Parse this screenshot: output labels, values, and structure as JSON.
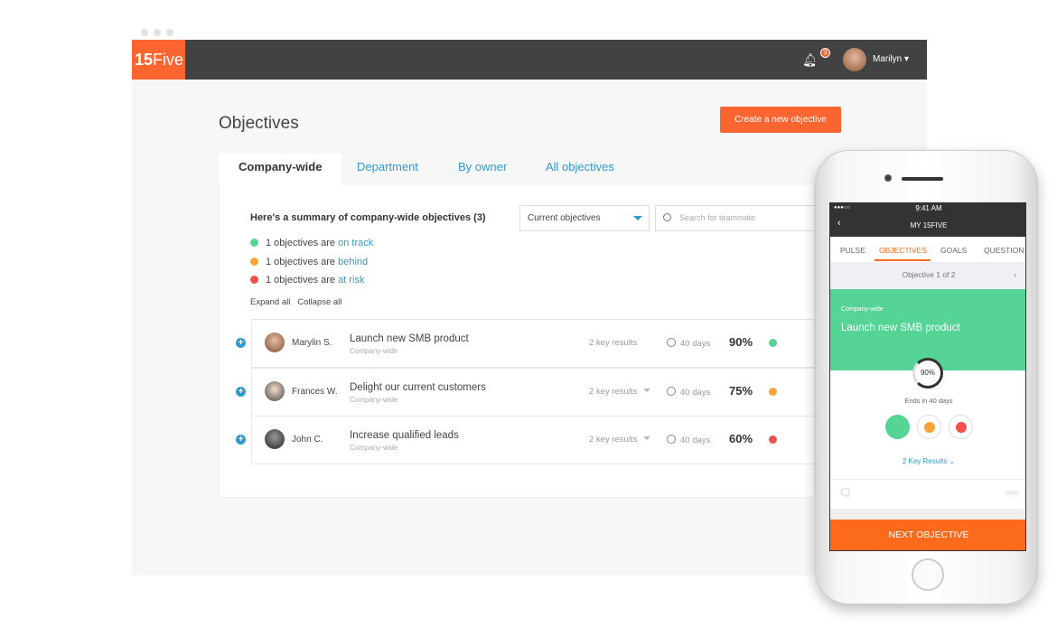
{
  "window": {
    "logo": {
      "num": "15",
      "word": "Five"
    },
    "notifications": "3",
    "user": "Marilyn"
  },
  "page": {
    "title": "Objectives",
    "create_button": "Create a new objective"
  },
  "tabs": [
    {
      "label": "Company-wide"
    },
    {
      "label": "Department"
    },
    {
      "label": "By owner"
    },
    {
      "label": "All objectives"
    }
  ],
  "summary": {
    "title": "Here's a summary of company-wide objectives (3)",
    "lines": [
      {
        "prefix": "1 objectives are ",
        "link": "on track",
        "color": "#55d496"
      },
      {
        "prefix": "1 objectives are ",
        "link": "behind",
        "color": "#fca43a"
      },
      {
        "prefix": "1 objectives are ",
        "link": "at risk",
        "color": "#f24f4f"
      }
    ]
  },
  "filter": {
    "selected": "Current objectives",
    "search_placeholder": "Search for teammate"
  },
  "controls": {
    "expand": "Expand all",
    "collapse": "Collapse all"
  },
  "objectives": [
    {
      "owner": "Marylin S.",
      "title": "Launch new SMB product",
      "scope": "Company-wide",
      "key_results": "2 key results",
      "days": "40 days",
      "progress": "90%",
      "status_color": "#55d496"
    },
    {
      "owner": "Frances W.",
      "title": "Delight our current customers",
      "scope": "Company-wide",
      "key_results": "2 key results",
      "days": "40 days",
      "progress": "75%",
      "status_color": "#fca43a"
    },
    {
      "owner": "John C.",
      "title": "Increase qualified leads",
      "scope": "Company-wide",
      "key_results": "2 key results",
      "days": "40 days",
      "progress": "60%",
      "status_color": "#f24f4f"
    }
  ],
  "phone": {
    "time": "9:41 AM",
    "title": "MY 15FIVE",
    "tabs": [
      "PULSE",
      "OBJECTIVES",
      "GOALS",
      "QUESTION"
    ],
    "crumb": "Objective 1 of 2",
    "scope": "Company-wide",
    "objective": "Launch new SMB product",
    "progress": "90%",
    "ends": "Ends in 40 days",
    "key_results": "2 Key Results",
    "next": "NEXT OBJECTIVE"
  }
}
